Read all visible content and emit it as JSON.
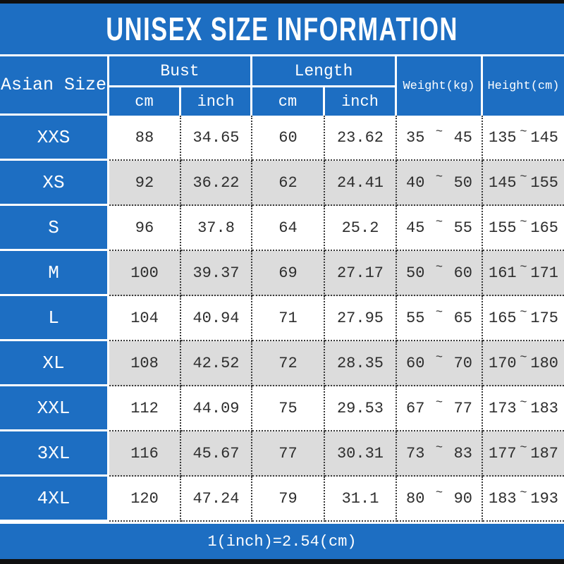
{
  "title": "UNISEX SIZE INFORMATION",
  "colors": {
    "blue": "#1d6ec2",
    "row-gray": "#dcdcdc",
    "ink": "#2e2e2e",
    "strip": "#101010"
  },
  "sym": {
    "tilde": "~"
  },
  "header": {
    "size_col": "Asian Size",
    "bust": "Bust",
    "length": "Length",
    "cm": "cm",
    "inch": "inch",
    "weight": "Weight(kg)",
    "height": "Height(cm)"
  },
  "rows": [
    {
      "size": "XXS",
      "bust_cm": "88",
      "bust_inch": "34.65",
      "len_cm": "60",
      "len_inch": "23.62",
      "w1": "35",
      "w2": "45",
      "h1": "135",
      "h2": "145"
    },
    {
      "size": "XS",
      "bust_cm": "92",
      "bust_inch": "36.22",
      "len_cm": "62",
      "len_inch": "24.41",
      "w1": "40",
      "w2": "50",
      "h1": "145",
      "h2": "155"
    },
    {
      "size": "S",
      "bust_cm": "96",
      "bust_inch": "37.8",
      "len_cm": "64",
      "len_inch": "25.2",
      "w1": "45",
      "w2": "55",
      "h1": "155",
      "h2": "165"
    },
    {
      "size": "M",
      "bust_cm": "100",
      "bust_inch": "39.37",
      "len_cm": "69",
      "len_inch": "27.17",
      "w1": "50",
      "w2": "60",
      "h1": "161",
      "h2": "171"
    },
    {
      "size": "L",
      "bust_cm": "104",
      "bust_inch": "40.94",
      "len_cm": "71",
      "len_inch": "27.95",
      "w1": "55",
      "w2": "65",
      "h1": "165",
      "h2": "175"
    },
    {
      "size": "XL",
      "bust_cm": "108",
      "bust_inch": "42.52",
      "len_cm": "72",
      "len_inch": "28.35",
      "w1": "60",
      "w2": "70",
      "h1": "170",
      "h2": "180"
    },
    {
      "size": "XXL",
      "bust_cm": "112",
      "bust_inch": "44.09",
      "len_cm": "75",
      "len_inch": "29.53",
      "w1": "67",
      "w2": "77",
      "h1": "173",
      "h2": "183"
    },
    {
      "size": "3XL",
      "bust_cm": "116",
      "bust_inch": "45.67",
      "len_cm": "77",
      "len_inch": "30.31",
      "w1": "73",
      "w2": "83",
      "h1": "177",
      "h2": "187"
    },
    {
      "size": "4XL",
      "bust_cm": "120",
      "bust_inch": "47.24",
      "len_cm": "79",
      "len_inch": "31.1",
      "w1": "80",
      "w2": "90",
      "h1": "183",
      "h2": "193"
    }
  ],
  "footer": {
    "note": "1(inch)=2.54(cm)"
  },
  "chart_data": {
    "type": "table",
    "title": "UNISEX SIZE INFORMATION",
    "columns": [
      "Asian Size",
      "Bust cm",
      "Bust inch",
      "Length cm",
      "Length inch",
      "Weight(kg)",
      "Height(cm)"
    ],
    "rows": [
      [
        "XXS",
        "88",
        "34.65",
        "60",
        "23.62",
        "35~45",
        "135~145"
      ],
      [
        "XS",
        "92",
        "36.22",
        "62",
        "24.41",
        "40~50",
        "145~155"
      ],
      [
        "S",
        "96",
        "37.8",
        "64",
        "25.2",
        "45~55",
        "155~165"
      ],
      [
        "M",
        "100",
        "39.37",
        "69",
        "27.17",
        "50~60",
        "161~171"
      ],
      [
        "L",
        "104",
        "40.94",
        "71",
        "27.95",
        "55~65",
        "165~175"
      ],
      [
        "XL",
        "108",
        "42.52",
        "72",
        "28.35",
        "60~70",
        "170~180"
      ],
      [
        "XXL",
        "112",
        "44.09",
        "75",
        "29.53",
        "67~77",
        "173~183"
      ],
      [
        "3XL",
        "116",
        "45.67",
        "77",
        "30.31",
        "73~83",
        "177~187"
      ],
      [
        "4XL",
        "120",
        "47.24",
        "79",
        "31.1",
        "80~90",
        "183~193"
      ]
    ],
    "footnote": "1(inch)=2.54(cm)",
    "layout": {
      "header_fill": "#1d6ec2",
      "alt_row_fill": "#dcdcdc",
      "grid": "dotted"
    }
  }
}
